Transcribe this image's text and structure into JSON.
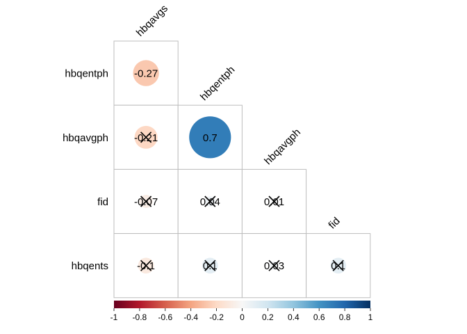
{
  "chart_data": {
    "type": "heatmap",
    "style": "corrplot-lower-circles-with-coefficients",
    "title": "",
    "column_labels": [
      "hbqavgs",
      "hbqentph",
      "hbqavgph",
      "fid"
    ],
    "row_labels": [
      "hbqentph",
      "hbqavgph",
      "fid",
      "hbqents"
    ],
    "cells": [
      {
        "row": "hbqentph",
        "col": "hbqavgs",
        "value": -0.27,
        "label": "-0.27",
        "crossed": false
      },
      {
        "row": "hbqavgph",
        "col": "hbqavgs",
        "value": -0.21,
        "label": "-0.21",
        "crossed": true
      },
      {
        "row": "hbqavgph",
        "col": "hbqentph",
        "value": 0.7,
        "label": "0.7",
        "crossed": false
      },
      {
        "row": "fid",
        "col": "hbqavgs",
        "value": -0.07,
        "label": "-0.07",
        "crossed": true
      },
      {
        "row": "fid",
        "col": "hbqentph",
        "value": 0.04,
        "label": "0.04",
        "crossed": true
      },
      {
        "row": "fid",
        "col": "hbqavgph",
        "value": 0.01,
        "label": "0.01",
        "crossed": true
      },
      {
        "row": "hbqents",
        "col": "hbqavgs",
        "value": -0.1,
        "label": "-0.1",
        "crossed": true
      },
      {
        "row": "hbqents",
        "col": "hbqentph",
        "value": 0.1,
        "label": "0.1",
        "crossed": true
      },
      {
        "row": "hbqents",
        "col": "hbqavgph",
        "value": 0.03,
        "label": "0.03",
        "crossed": true
      },
      {
        "row": "hbqents",
        "col": "fid",
        "value": 0.1,
        "label": "0.1",
        "crossed": true
      }
    ],
    "colorbar": {
      "range": [
        -1,
        1
      ],
      "ticks": [
        "-1",
        "-0.8",
        "-0.6",
        "-0.4",
        "-0.2",
        "0",
        "0.2",
        "0.4",
        "0.6",
        "0.8",
        "1"
      ],
      "colors": [
        "#67001f",
        "#b2182b",
        "#d6604d",
        "#f4a582",
        "#fddbc7",
        "#f7f7f7",
        "#d1e5f0",
        "#92c5de",
        "#4393c3",
        "#2166ac",
        "#053061"
      ]
    }
  }
}
